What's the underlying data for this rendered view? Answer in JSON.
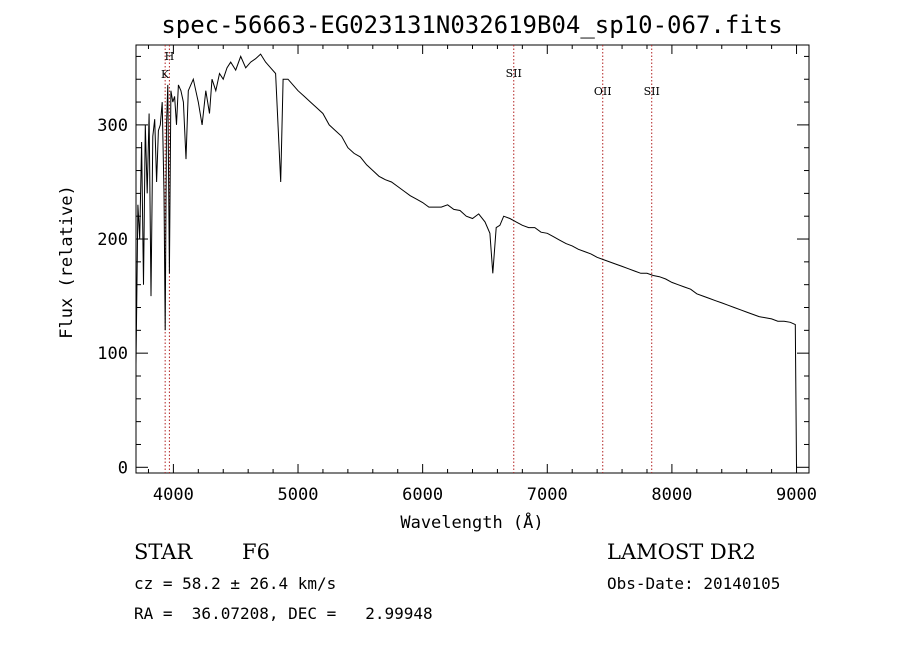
{
  "chart_data": {
    "type": "line",
    "title": "spec-56663-EG023131N032619B04_sp10-067.fits",
    "xlabel": "Wavelength (Å)",
    "ylabel": "Flux (relative)",
    "xlim": [
      3700,
      9100
    ],
    "ylim": [
      -5,
      370
    ],
    "x_ticks": [
      4000,
      5000,
      6000,
      7000,
      8000,
      9000
    ],
    "y_ticks": [
      0,
      100,
      200,
      300
    ],
    "grid": false,
    "line_markers": [
      {
        "label": "K",
        "x": 3934
      },
      {
        "label": "H",
        "x": 3968
      },
      {
        "label": "SII",
        "x": 6731
      },
      {
        "label": "OII",
        "x": 7445
      },
      {
        "label": "SII",
        "x": 7838
      }
    ],
    "series": [
      {
        "color": "#000000",
        "x": [
          3700,
          3715,
          3730,
          3745,
          3760,
          3775,
          3790,
          3805,
          3820,
          3835,
          3850,
          3865,
          3880,
          3895,
          3910,
          3925,
          3934,
          3945,
          3955,
          3968,
          3980,
          3995,
          4010,
          4025,
          4040,
          4060,
          4080,
          4101,
          4120,
          4140,
          4160,
          4180,
          4200,
          4230,
          4260,
          4290,
          4310,
          4340,
          4370,
          4400,
          4430,
          4460,
          4500,
          4540,
          4580,
          4620,
          4660,
          4700,
          4740,
          4780,
          4820,
          4861,
          4880,
          4920,
          4960,
          5000,
          5050,
          5100,
          5150,
          5200,
          5250,
          5300,
          5350,
          5400,
          5450,
          5500,
          5550,
          5600,
          5650,
          5700,
          5750,
          5800,
          5850,
          5900,
          5950,
          6000,
          6050,
          6100,
          6150,
          6200,
          6250,
          6300,
          6350,
          6400,
          6450,
          6500,
          6540,
          6563,
          6590,
          6620,
          6650,
          6700,
          6750,
          6800,
          6850,
          6900,
          6950,
          7000,
          7050,
          7100,
          7150,
          7200,
          7250,
          7300,
          7350,
          7400,
          7450,
          7500,
          7550,
          7600,
          7650,
          7700,
          7750,
          7800,
          7850,
          7900,
          7950,
          8000,
          8050,
          8100,
          8150,
          8200,
          8250,
          8300,
          8350,
          8400,
          8450,
          8500,
          8550,
          8600,
          8650,
          8700,
          8750,
          8800,
          8850,
          8900,
          8950,
          8990,
          9000
        ],
        "y": [
          90,
          230,
          200,
          285,
          160,
          300,
          240,
          310,
          150,
          290,
          305,
          250,
          295,
          300,
          320,
          240,
          120,
          300,
          335,
          170,
          330,
          320,
          325,
          300,
          335,
          330,
          320,
          270,
          330,
          335,
          340,
          330,
          320,
          300,
          330,
          310,
          340,
          330,
          345,
          340,
          350,
          355,
          348,
          360,
          350,
          355,
          358,
          362,
          355,
          350,
          345,
          250,
          340,
          340,
          335,
          330,
          325,
          320,
          315,
          310,
          300,
          295,
          290,
          280,
          275,
          272,
          265,
          260,
          255,
          252,
          250,
          246,
          242,
          238,
          235,
          232,
          228,
          228,
          228,
          230,
          226,
          225,
          220,
          218,
          222,
          215,
          205,
          170,
          210,
          212,
          220,
          218,
          215,
          212,
          210,
          210,
          206,
          205,
          202,
          199,
          196,
          194,
          191,
          189,
          187,
          184,
          182,
          180,
          178,
          176,
          174,
          172,
          170,
          170,
          168,
          167,
          165,
          162,
          160,
          158,
          156,
          152,
          150,
          148,
          146,
          144,
          142,
          140,
          138,
          136,
          134,
          132,
          131,
          130,
          128,
          128,
          127,
          125,
          0
        ]
      }
    ]
  },
  "info": {
    "class": "STAR",
    "subclass": "F6",
    "survey": "LAMOST DR2",
    "cz": "cz = 58.2 ± 26.4 km/s",
    "obs_date": "Obs-Date: 20140105",
    "radec": "RA =  36.07208, DEC =   2.99948"
  }
}
